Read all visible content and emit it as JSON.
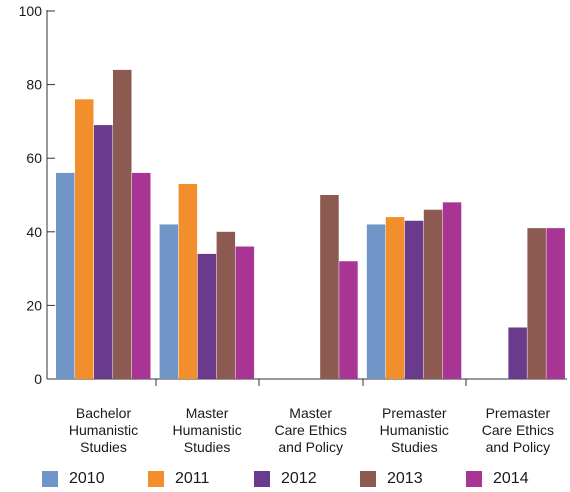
{
  "chart_data": {
    "type": "bar",
    "title": "",
    "xlabel": "",
    "ylabel": "",
    "ylim": [
      0,
      100
    ],
    "yticks": [
      "0",
      "20",
      "40",
      "60",
      "80",
      "100"
    ],
    "categories": [
      [
        "Bachelor",
        "Humanistic",
        "Studies"
      ],
      [
        "Master",
        "Humanistic",
        "Studies"
      ],
      [
        "Master",
        "Care Ethics",
        "and Policy"
      ],
      [
        "Premaster",
        "Humanistic",
        "Studies"
      ],
      [
        "Premaster",
        "Care Ethics",
        "and Policy"
      ]
    ],
    "series": [
      {
        "name": "2010",
        "color": "#7096c8",
        "values": [
          56,
          42,
          null,
          42,
          null
        ]
      },
      {
        "name": "2011",
        "color": "#f28e2b",
        "values": [
          76,
          53,
          null,
          44,
          null
        ]
      },
      {
        "name": "2012",
        "color": "#6a3b8c",
        "values": [
          69,
          34,
          null,
          43,
          14
        ]
      },
      {
        "name": "2013",
        "color": "#8c5a50",
        "values": [
          84,
          40,
          50,
          46,
          41
        ]
      },
      {
        "name": "2014",
        "color": "#a83494",
        "values": [
          56,
          36,
          32,
          48,
          41
        ]
      }
    ],
    "grid": false,
    "legend_position": "bottom"
  }
}
